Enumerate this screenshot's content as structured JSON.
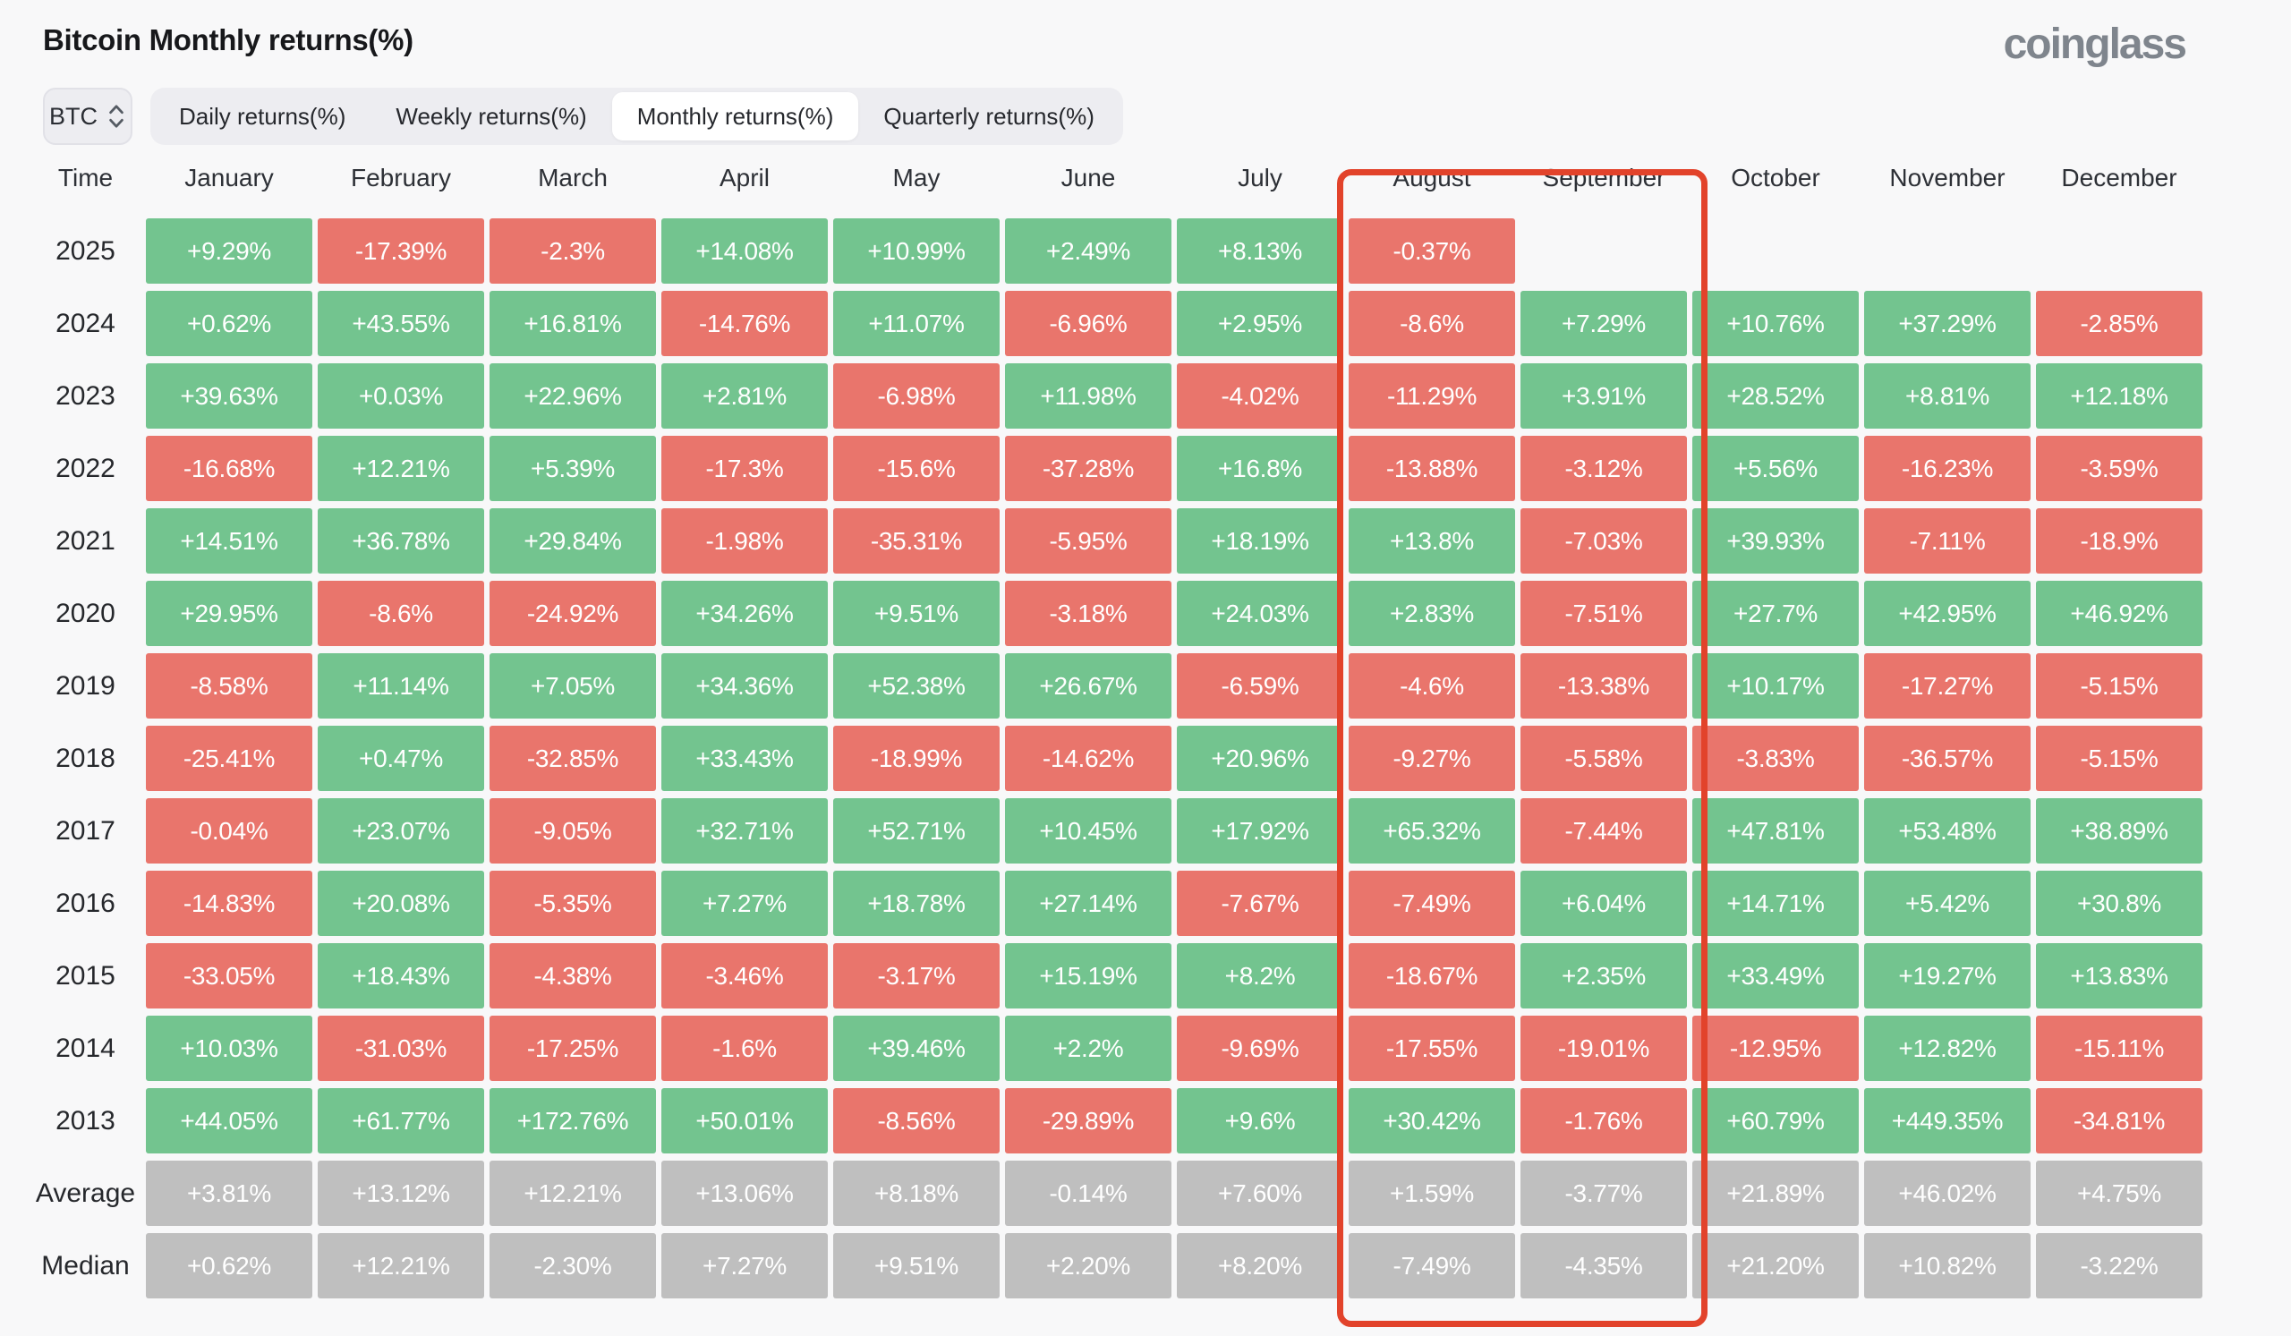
{
  "page": {
    "title": "Bitcoin Monthly returns(%)",
    "brand": "coinglass"
  },
  "controls": {
    "symbol_select": {
      "value": "BTC"
    },
    "tabs": [
      {
        "label": "Daily returns(%)",
        "active": false
      },
      {
        "label": "Weekly returns(%)",
        "active": false
      },
      {
        "label": "Monthly returns(%)",
        "active": true
      },
      {
        "label": "Quarterly returns(%)",
        "active": false
      }
    ]
  },
  "table": {
    "time_header": "Time",
    "months": [
      "January",
      "February",
      "March",
      "April",
      "May",
      "June",
      "July",
      "August",
      "September",
      "October",
      "November",
      "December"
    ],
    "rows": [
      {
        "label": "2025",
        "type": "year",
        "values": [
          "+9.29%",
          "-17.39%",
          "-2.3%",
          "+14.08%",
          "+10.99%",
          "+2.49%",
          "+8.13%",
          "-0.37%",
          "",
          "",
          "",
          ""
        ]
      },
      {
        "label": "2024",
        "type": "year",
        "values": [
          "+0.62%",
          "+43.55%",
          "+16.81%",
          "-14.76%",
          "+11.07%",
          "-6.96%",
          "+2.95%",
          "-8.6%",
          "+7.29%",
          "+10.76%",
          "+37.29%",
          "-2.85%"
        ]
      },
      {
        "label": "2023",
        "type": "year",
        "values": [
          "+39.63%",
          "+0.03%",
          "+22.96%",
          "+2.81%",
          "-6.98%",
          "+11.98%",
          "-4.02%",
          "-11.29%",
          "+3.91%",
          "+28.52%",
          "+8.81%",
          "+12.18%"
        ]
      },
      {
        "label": "2022",
        "type": "year",
        "values": [
          "-16.68%",
          "+12.21%",
          "+5.39%",
          "-17.3%",
          "-15.6%",
          "-37.28%",
          "+16.8%",
          "-13.88%",
          "-3.12%",
          "+5.56%",
          "-16.23%",
          "-3.59%"
        ]
      },
      {
        "label": "2021",
        "type": "year",
        "values": [
          "+14.51%",
          "+36.78%",
          "+29.84%",
          "-1.98%",
          "-35.31%",
          "-5.95%",
          "+18.19%",
          "+13.8%",
          "-7.03%",
          "+39.93%",
          "-7.11%",
          "-18.9%"
        ]
      },
      {
        "label": "2020",
        "type": "year",
        "values": [
          "+29.95%",
          "-8.6%",
          "-24.92%",
          "+34.26%",
          "+9.51%",
          "-3.18%",
          "+24.03%",
          "+2.83%",
          "-7.51%",
          "+27.7%",
          "+42.95%",
          "+46.92%"
        ]
      },
      {
        "label": "2019",
        "type": "year",
        "values": [
          "-8.58%",
          "+11.14%",
          "+7.05%",
          "+34.36%",
          "+52.38%",
          "+26.67%",
          "-6.59%",
          "-4.6%",
          "-13.38%",
          "+10.17%",
          "-17.27%",
          "-5.15%"
        ]
      },
      {
        "label": "2018",
        "type": "year",
        "values": [
          "-25.41%",
          "+0.47%",
          "-32.85%",
          "+33.43%",
          "-18.99%",
          "-14.62%",
          "+20.96%",
          "-9.27%",
          "-5.58%",
          "-3.83%",
          "-36.57%",
          "-5.15%"
        ]
      },
      {
        "label": "2017",
        "type": "year",
        "values": [
          "-0.04%",
          "+23.07%",
          "-9.05%",
          "+32.71%",
          "+52.71%",
          "+10.45%",
          "+17.92%",
          "+65.32%",
          "-7.44%",
          "+47.81%",
          "+53.48%",
          "+38.89%"
        ]
      },
      {
        "label": "2016",
        "type": "year",
        "values": [
          "-14.83%",
          "+20.08%",
          "-5.35%",
          "+7.27%",
          "+18.78%",
          "+27.14%",
          "-7.67%",
          "-7.49%",
          "+6.04%",
          "+14.71%",
          "+5.42%",
          "+30.8%"
        ]
      },
      {
        "label": "2015",
        "type": "year",
        "values": [
          "-33.05%",
          "+18.43%",
          "-4.38%",
          "-3.46%",
          "-3.17%",
          "+15.19%",
          "+8.2%",
          "-18.67%",
          "+2.35%",
          "+33.49%",
          "+19.27%",
          "+13.83%"
        ]
      },
      {
        "label": "2014",
        "type": "year",
        "values": [
          "+10.03%",
          "-31.03%",
          "-17.25%",
          "-1.6%",
          "+39.46%",
          "+2.2%",
          "-9.69%",
          "-17.55%",
          "-19.01%",
          "-12.95%",
          "+12.82%",
          "-15.11%"
        ]
      },
      {
        "label": "2013",
        "type": "year",
        "values": [
          "+44.05%",
          "+61.77%",
          "+172.76%",
          "+50.01%",
          "-8.56%",
          "-29.89%",
          "+9.6%",
          "+30.42%",
          "-1.76%",
          "+60.79%",
          "+449.35%",
          "-34.81%"
        ]
      },
      {
        "label": "Average",
        "type": "summary",
        "values": [
          "+3.81%",
          "+13.12%",
          "+12.21%",
          "+13.06%",
          "+8.18%",
          "-0.14%",
          "+7.60%",
          "+1.59%",
          "-3.77%",
          "+21.89%",
          "+46.02%",
          "+4.75%"
        ]
      },
      {
        "label": "Median",
        "type": "summary",
        "values": [
          "+0.62%",
          "+12.21%",
          "-2.30%",
          "+7.27%",
          "+9.51%",
          "+2.20%",
          "+8.20%",
          "-7.49%",
          "-4.35%",
          "+21.20%",
          "+10.82%",
          "-3.22%"
        ]
      }
    ]
  },
  "annotation": {
    "highlighted_months": [
      "August",
      "September"
    ],
    "box_color": "#e2432b"
  },
  "colors": {
    "positive": "#73c48f",
    "negative": "#e9756c",
    "summary": "#bfbfbf"
  }
}
